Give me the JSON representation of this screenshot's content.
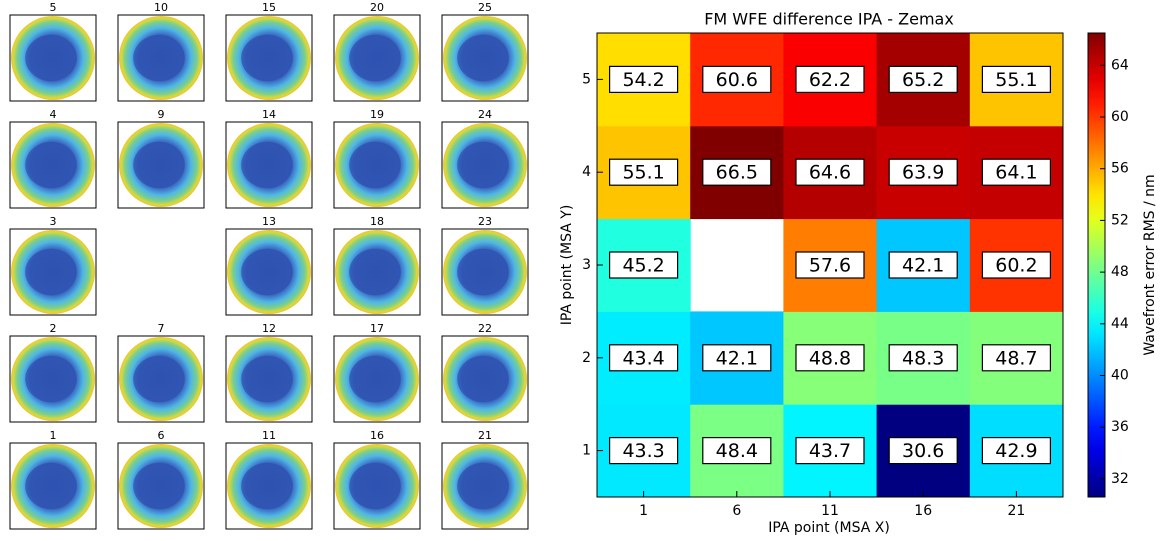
{
  "chart_data": [
    {
      "type": "image_grid",
      "titles": [
        [
          "5",
          "10",
          "15",
          "20",
          "25"
        ],
        [
          "4",
          "9",
          "14",
          "19",
          "24"
        ],
        [
          "3",
          null,
          "13",
          "18",
          "23"
        ],
        [
          "2",
          "7",
          "12",
          "17",
          "22"
        ],
        [
          "1",
          "6",
          "11",
          "16",
          "21"
        ]
      ]
    },
    {
      "type": "heatmap",
      "title": "FM WFE difference IPA - Zemax",
      "xlabel": "IPA point (MSA X)",
      "ylabel": "IPA point (MSA Y)",
      "x": [
        "1",
        "6",
        "11",
        "16",
        "21"
      ],
      "y": [
        "1",
        "2",
        "3",
        "4",
        "5"
      ],
      "values": [
        [
          43.3,
          48.4,
          43.7,
          30.6,
          42.9
        ],
        [
          43.4,
          42.1,
          48.8,
          48.3,
          48.7
        ],
        [
          45.2,
          null,
          57.6,
          42.1,
          60.2
        ],
        [
          55.1,
          66.5,
          64.6,
          63.9,
          64.1
        ],
        [
          54.2,
          60.6,
          62.2,
          65.2,
          55.1
        ]
      ],
      "colormap": "jet",
      "clim": [
        30.6,
        66.5
      ],
      "cticks": [
        32,
        36,
        40,
        44,
        48,
        52,
        56,
        60,
        64
      ],
      "colorbar_label": "Wavefront error RMS / nm"
    }
  ]
}
